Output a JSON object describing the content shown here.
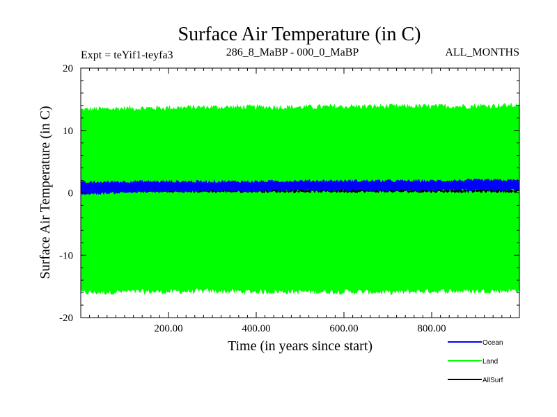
{
  "chart_data": {
    "type": "line",
    "title": "Surface Air Temperature (in C)",
    "subtitle_left": "Expt = teYif1-teyfa3",
    "subtitle_center": "286_8_MaBP - 000_0_MaBP",
    "subtitle_right": "ALL_MONTHS",
    "xlabel": "Time (in years since start)",
    "ylabel": "Surface Air Temperature (in C)",
    "xlim": [
      0,
      1000
    ],
    "ylim": [
      -20,
      20
    ],
    "xticks": [
      200,
      400,
      600,
      800
    ],
    "xtick_labels": [
      "200.00",
      "400.00",
      "600.00",
      "800.00"
    ],
    "yticks": [
      -20,
      -10,
      0,
      10,
      20
    ],
    "ytick_labels": [
      "-20",
      "-10",
      "0",
      "10",
      "20"
    ],
    "series": [
      {
        "name": "Land",
        "color": "#00ff00",
        "description": "monthly oscillation envelope",
        "upper": {
          "x": [
            0,
            100,
            200,
            300,
            400,
            500,
            600,
            700,
            800,
            900,
            1000
          ],
          "y": [
            13.3,
            13.5,
            13.6,
            13.7,
            13.7,
            13.7,
            13.8,
            13.8,
            13.8,
            13.9,
            14.0
          ]
        },
        "lower": {
          "x": [
            0,
            100,
            200,
            300,
            400,
            500,
            600,
            700,
            800,
            900,
            1000
          ],
          "y": [
            -16.0,
            -15.8,
            -15.8,
            -15.7,
            -15.8,
            -15.8,
            -15.8,
            -15.9,
            -15.7,
            -15.7,
            -15.6
          ]
        }
      },
      {
        "name": "Ocean",
        "color": "#0000ff",
        "description": "monthly oscillation envelope",
        "upper": {
          "x": [
            0,
            100,
            200,
            300,
            400,
            500,
            600,
            700,
            800,
            900,
            1000
          ],
          "y": [
            1.6,
            1.8,
            1.8,
            1.8,
            1.8,
            1.9,
            1.9,
            1.9,
            1.9,
            2.0,
            2.0
          ]
        },
        "lower": {
          "x": [
            0,
            100,
            200,
            300,
            400,
            500,
            600,
            700,
            800,
            900,
            1000
          ],
          "y": [
            -0.2,
            0.1,
            0.2,
            0.3,
            0.3,
            0.4,
            0.4,
            0.4,
            0.4,
            0.5,
            0.5
          ]
        }
      },
      {
        "name": "AllSurf",
        "color": "#000000",
        "description": "monthly oscillation envelope (hidden beneath other series)",
        "upper": {
          "x": [
            0,
            1000
          ],
          "y": [
            0.5,
            0.5
          ]
        },
        "lower": {
          "x": [
            0,
            1000
          ],
          "y": [
            0.2,
            0.2
          ]
        }
      }
    ],
    "legend": {
      "placement": "bottom-right",
      "entries": [
        {
          "name": "Ocean",
          "color": "#0000ff"
        },
        {
          "name": "Land",
          "color": "#00ff00"
        },
        {
          "name": "AllSurf",
          "color": "#000000"
        }
      ]
    }
  }
}
